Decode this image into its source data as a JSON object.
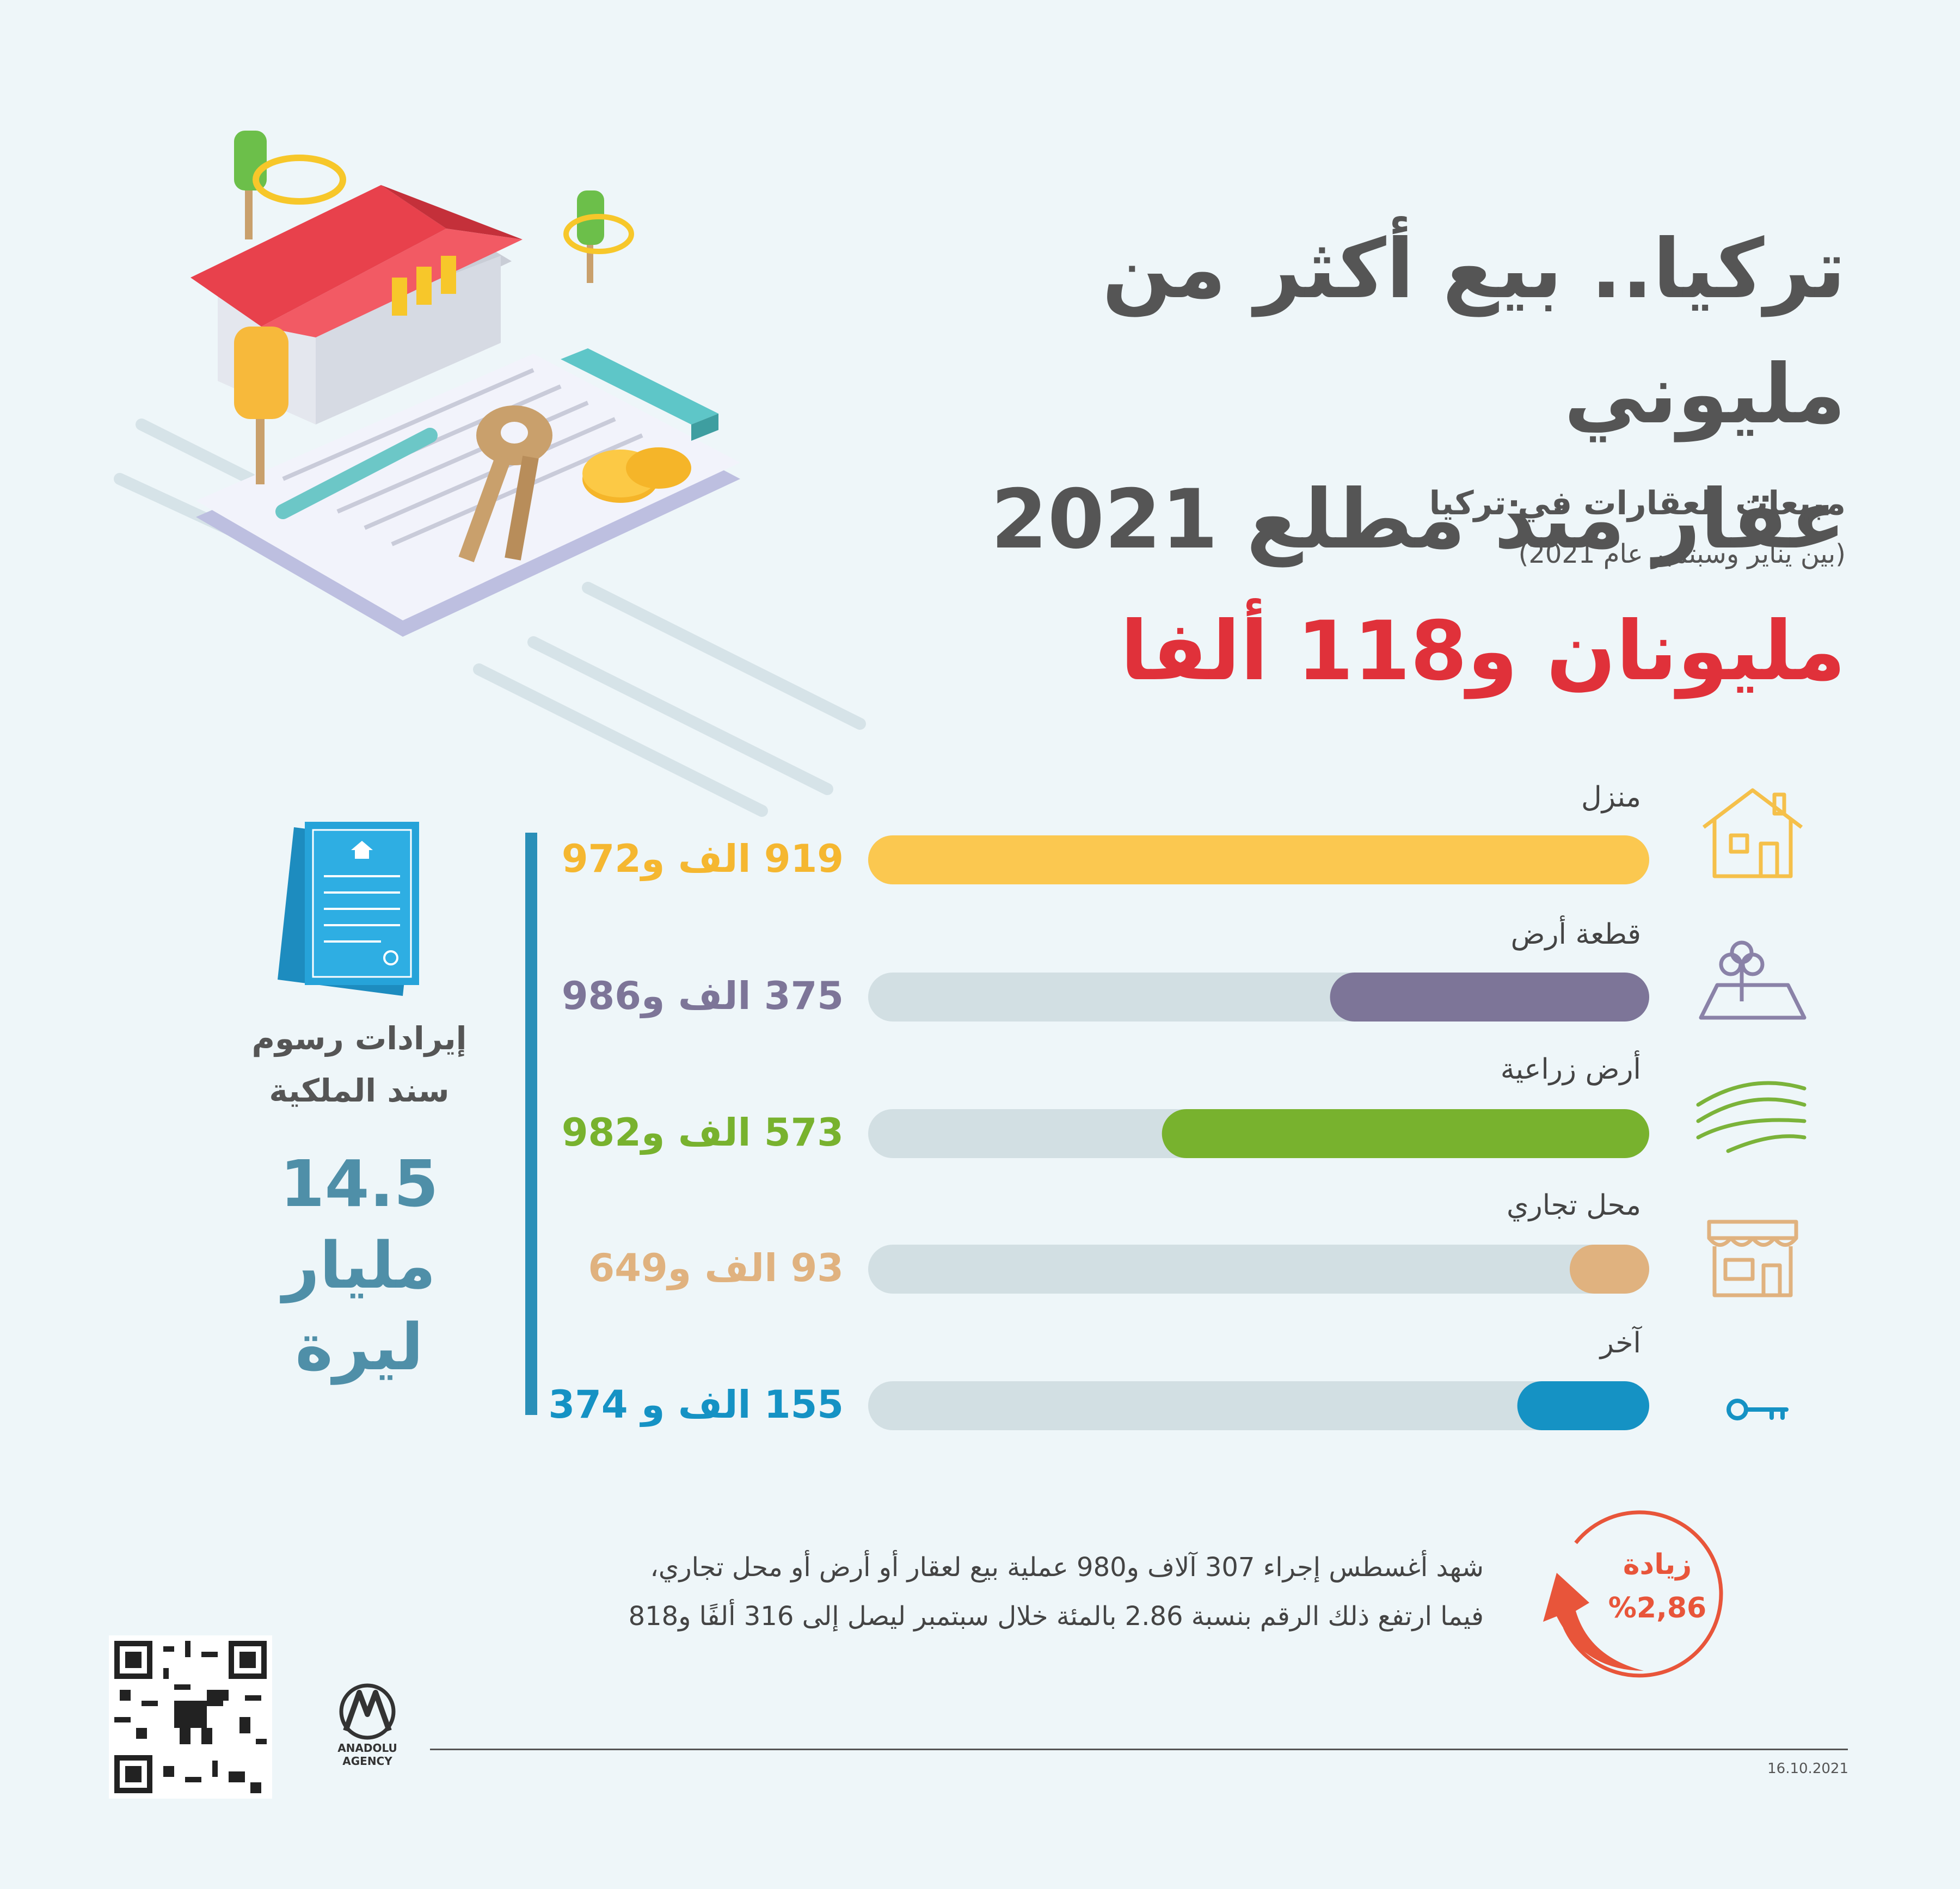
{
  "header": {
    "title_line1": "تركيا.. بيع أكثر من مليوني",
    "title_line2": "عقار منذ مطلع 2021",
    "subtitle": "مبيعات العقارات في تركيا",
    "subnote": "(بين يناير وسبتمبر عام 2021)",
    "total": "مليونان و118 ألفا"
  },
  "side_panel": {
    "label_line1": "إيرادات رسوم",
    "label_line2": "سند الملكية",
    "value_line1": "14.5",
    "value_line2": "مليار",
    "value_line3": "ليرة"
  },
  "chart_data": {
    "type": "bar",
    "orientation": "horizontal",
    "categories": [
      "منزل",
      "قطعة أرض",
      "أرض زراعية",
      "محل تجاري",
      "آخر"
    ],
    "values": [
      919972,
      375986,
      573982,
      93649,
      155374
    ],
    "value_labels": [
      "919 الف و972",
      "375 الف و986",
      "573 الف و982",
      "93 الف و649",
      "155 الف و 374"
    ],
    "colors": [
      "#fbc850",
      "#7d7598",
      "#78b22e",
      "#e0b27f",
      "#1592c4"
    ],
    "track_color": "#d2dfe3",
    "xlim": [
      0,
      919972
    ],
    "icons": [
      "house-icon",
      "land-plot-icon",
      "farmland-icon",
      "shop-icon",
      "key-icon"
    ]
  },
  "footer": {
    "note_line1": "شهد أغسطس إجراء 307 آلاف و980 عملية بيع لعقار أو أرض أو محل تجاري،",
    "note_line2": "فيما ارتفع ذلك الرقم بنسبة 2.86 بالمئة خلال سبتمبر ليصل إلى 316 ألفًا و818",
    "increase_label": "زيادة",
    "increase_value": "%2,86",
    "logo_text": "ANADOLU AGENCY",
    "date": "16.10.2021"
  },
  "colors": {
    "accent_red": "#e0313a",
    "accent_orange": "#e8553a",
    "accent_blue": "#2a8fb8"
  }
}
